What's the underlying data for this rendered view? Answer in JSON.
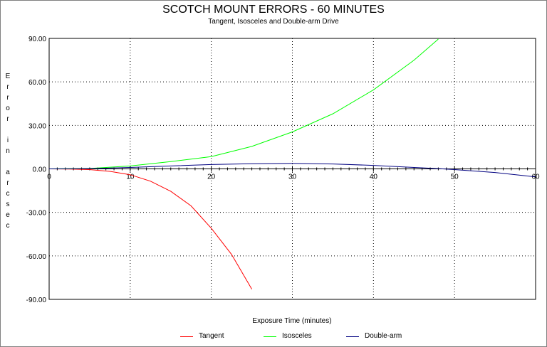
{
  "chart_data": {
    "type": "line",
    "title": "SCOTCH MOUNT ERRORS - 60 MINUTES",
    "subtitle": "Tangent, Isosceles and Double-arm Drive",
    "xlabel": "Exposure Time (minutes)",
    "ylabel": "Error in arcsec",
    "xlim": [
      0,
      60
    ],
    "ylim": [
      -90,
      90
    ],
    "x_ticks": [
      "0",
      "10",
      "20",
      "30",
      "40",
      "50",
      "60"
    ],
    "y_ticks": [
      "90.00",
      "60.00",
      "30.00",
      "0.00",
      "-30.00",
      "-60.00",
      "-90.00"
    ],
    "grid": true,
    "legend_position": "bottom",
    "series": [
      {
        "name": "Tangent",
        "color": "#ff0000",
        "x": [
          0,
          2.5,
          5,
          7.5,
          10,
          12.5,
          15,
          17.5,
          20,
          22.5,
          25
        ],
        "y": [
          0,
          -0.1,
          -0.5,
          -1.7,
          -4.0,
          -8.5,
          -15.5,
          -25.5,
          -41.0,
          -59.0,
          -83.0
        ]
      },
      {
        "name": "Isosceles",
        "color": "#00ff00",
        "x": [
          0,
          5,
          10,
          15,
          20,
          25,
          30,
          35,
          40,
          45,
          48
        ],
        "y": [
          0,
          0.3,
          2.0,
          5.0,
          8.5,
          15.5,
          25.5,
          38.0,
          54.5,
          75.0,
          89.5
        ]
      },
      {
        "name": "Double-arm",
        "color": "#000080",
        "x": [
          0,
          5,
          10,
          15,
          20,
          25,
          30,
          35,
          40,
          45,
          48,
          50,
          55,
          60
        ],
        "y": [
          0,
          0.2,
          1.0,
          2.0,
          3.0,
          3.6,
          3.8,
          3.4,
          2.4,
          1.0,
          0.2,
          -0.5,
          -2.5,
          -5.5
        ]
      }
    ]
  }
}
